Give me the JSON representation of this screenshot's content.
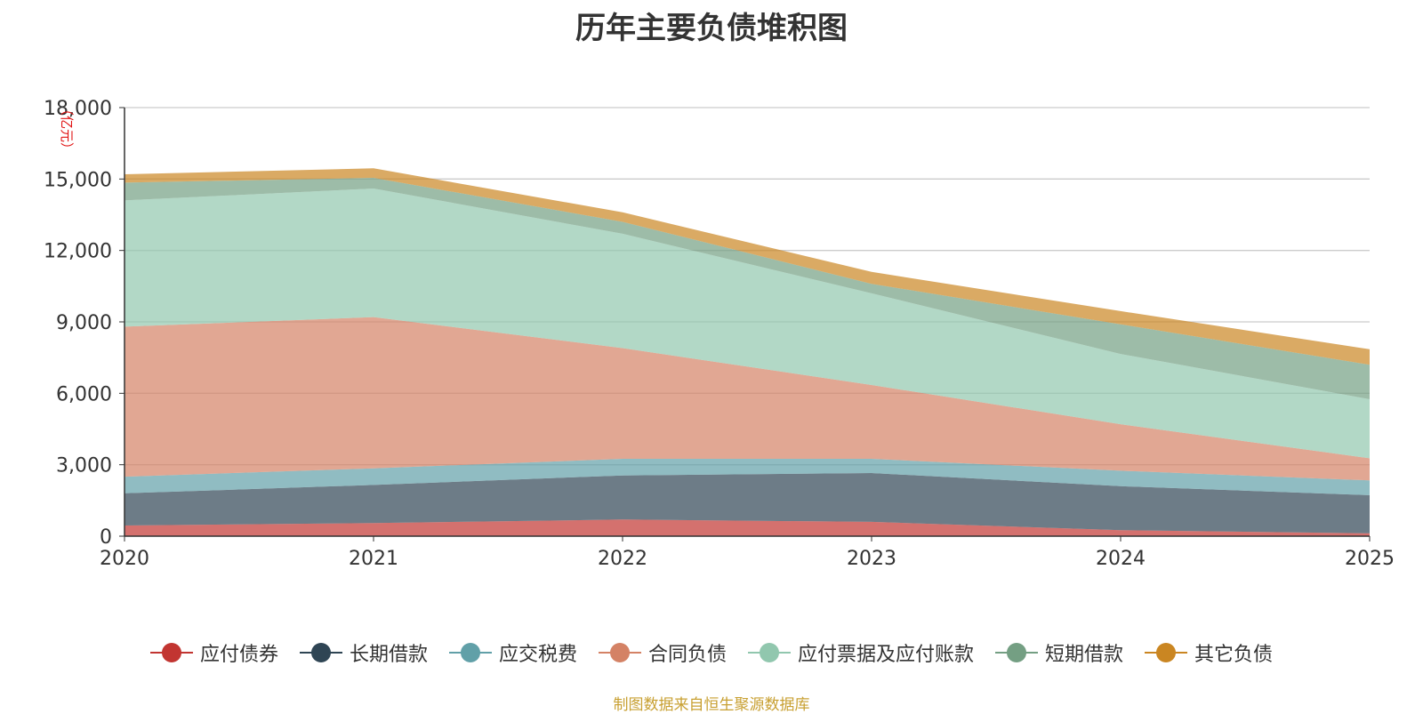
{
  "chart_data": {
    "type": "area",
    "stacked": true,
    "title": "历年主要负债堆积图",
    "ylabel": "（亿元）",
    "xlabel": "",
    "x": [
      "2020",
      "2021",
      "2022",
      "2023",
      "2024",
      "2025"
    ],
    "ylim": [
      0,
      18000
    ],
    "yticks": [
      0,
      3000,
      6000,
      9000,
      12000,
      15000,
      18000
    ],
    "ytick_labels": [
      "0",
      "3,000",
      "6,000",
      "9,000",
      "12,000",
      "15,000",
      "18,000"
    ],
    "grid": true,
    "legend_position": "bottom",
    "series": [
      {
        "name": "应付债券",
        "color": "#c23531",
        "values": [
          450,
          550,
          700,
          600,
          250,
          120
        ]
      },
      {
        "name": "长期借款",
        "color": "#2f4554",
        "values": [
          1350,
          1600,
          1850,
          2050,
          1850,
          1600
        ]
      },
      {
        "name": "应交税费",
        "color": "#61a0a8",
        "values": [
          700,
          700,
          700,
          600,
          650,
          620
        ]
      },
      {
        "name": "合同负债",
        "color": "#d48265",
        "values": [
          6300,
          6350,
          4650,
          3100,
          1950,
          930
        ]
      },
      {
        "name": "应付票据及应付账款",
        "color": "#91c7ae",
        "values": [
          5300,
          5400,
          4800,
          3850,
          2950,
          2480
        ]
      },
      {
        "name": "短期借款",
        "color": "#749f83",
        "values": [
          750,
          450,
          500,
          400,
          1250,
          1450
        ]
      },
      {
        "name": "其它负债",
        "color": "#ca8622",
        "values": [
          350,
          400,
          400,
          500,
          550,
          650
        ]
      }
    ]
  },
  "source_note": "制图数据来自恒生聚源数据库",
  "source_note_color": "#c8a032"
}
